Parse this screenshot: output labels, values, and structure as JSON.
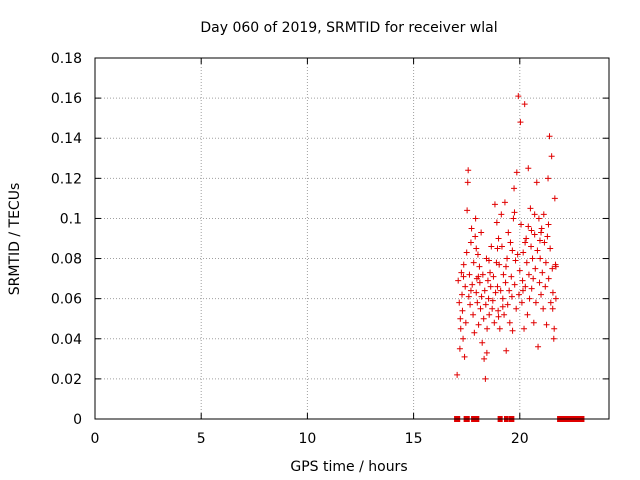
{
  "chart_data": {
    "type": "scatter",
    "title": "Day 060 of 2019, SRMTID for receiver wlal",
    "xlabel": "GPS time / hours",
    "ylabel": "SRMTID / TECUs",
    "xlim": [
      0,
      24.2
    ],
    "ylim": [
      0,
      0.18
    ],
    "grid": true,
    "marker": "+",
    "colors": {
      "series": "#e00000",
      "grid": "#a0a0a0",
      "axis": "#000000"
    },
    "x_ticks": [
      {
        "value": 0,
        "label": "0"
      },
      {
        "value": 5,
        "label": "5"
      },
      {
        "value": 10,
        "label": "10"
      },
      {
        "value": 15,
        "label": "15"
      },
      {
        "value": 20,
        "label": "20"
      }
    ],
    "y_ticks": [
      {
        "value": 0,
        "label": "0"
      },
      {
        "value": 0.02,
        "label": "0.02"
      },
      {
        "value": 0.04,
        "label": "0.04"
      },
      {
        "value": 0.06,
        "label": "0.06"
      },
      {
        "value": 0.08,
        "label": "0.08"
      },
      {
        "value": 0.1,
        "label": "0.1"
      },
      {
        "value": 0.12,
        "label": "0.12"
      },
      {
        "value": 0.14,
        "label": "0.14"
      },
      {
        "value": 0.16,
        "label": "0.16"
      },
      {
        "value": 0.18,
        "label": "0.18"
      }
    ],
    "series": [
      {
        "name": "SRMTID",
        "points": [
          [
            17.05,
            0.022
          ],
          [
            17.1,
            0.069
          ],
          [
            17.15,
            0.058
          ],
          [
            17.18,
            0.035
          ],
          [
            17.22,
            0.045
          ],
          [
            17.25,
            0.073
          ],
          [
            17.28,
            0.062
          ],
          [
            17.3,
            0.054
          ],
          [
            17.33,
            0.04
          ],
          [
            17.36,
            0.077
          ],
          [
            17.4,
            0.031
          ],
          [
            17.43,
            0.066
          ],
          [
            17.46,
            0.048
          ],
          [
            17.5,
            0.083
          ],
          [
            17.52,
            0.104
          ],
          [
            17.55,
            0.118
          ],
          [
            17.57,
            0.124
          ],
          [
            17.6,
            0.061
          ],
          [
            17.63,
            0.072
          ],
          [
            17.66,
            0.057
          ],
          [
            17.7,
            0.088
          ],
          [
            17.73,
            0.095
          ],
          [
            17.76,
            0.067
          ],
          [
            17.8,
            0.052
          ],
          [
            17.83,
            0.078
          ],
          [
            17.86,
            0.043
          ],
          [
            17.9,
            0.091
          ],
          [
            17.92,
            0.1
          ],
          [
            17.95,
            0.063
          ],
          [
            17.98,
            0.07
          ],
          [
            18.0,
            0.058
          ],
          [
            18.03,
            0.082
          ],
          [
            18.06,
            0.047
          ],
          [
            18.1,
            0.076
          ],
          [
            18.12,
            0.068
          ],
          [
            18.15,
            0.055
          ],
          [
            18.18,
            0.093
          ],
          [
            18.2,
            0.061
          ],
          [
            18.23,
            0.038
          ],
          [
            18.26,
            0.072
          ],
          [
            18.3,
            0.05
          ],
          [
            18.32,
            0.03
          ],
          [
            18.35,
            0.064
          ],
          [
            18.38,
            0.02
          ],
          [
            18.4,
            0.057
          ],
          [
            18.43,
            0.08
          ],
          [
            18.46,
            0.045
          ],
          [
            18.5,
            0.069
          ],
          [
            18.53,
            0.06
          ],
          [
            18.56,
            0.052
          ],
          [
            18.6,
            0.073
          ],
          [
            18.63,
            0.066
          ],
          [
            18.66,
            0.086
          ],
          [
            18.7,
            0.055
          ],
          [
            18.73,
            0.059
          ],
          [
            18.76,
            0.071
          ],
          [
            18.8,
            0.048
          ],
          [
            18.83,
            0.107
          ],
          [
            18.86,
            0.063
          ],
          [
            18.9,
            0.078
          ],
          [
            18.92,
            0.098
          ],
          [
            18.95,
            0.066
          ],
          [
            18.98,
            0.054
          ],
          [
            19.0,
            0.09
          ],
          [
            19.03,
            0.077
          ],
          [
            19.06,
            0.045
          ],
          [
            19.1,
            0.064
          ],
          [
            19.13,
            0.102
          ],
          [
            19.16,
            0.086
          ],
          [
            19.2,
            0.06
          ],
          [
            19.23,
            0.072
          ],
          [
            19.26,
            0.052
          ],
          [
            19.3,
            0.108
          ],
          [
            19.33,
            0.068
          ],
          [
            19.36,
            0.034
          ],
          [
            19.4,
            0.08
          ],
          [
            19.43,
            0.057
          ],
          [
            19.46,
            0.093
          ],
          [
            19.5,
            0.064
          ],
          [
            19.53,
            0.048
          ],
          [
            19.56,
            0.088
          ],
          [
            19.6,
            0.071
          ],
          [
            19.63,
            0.061
          ],
          [
            19.66,
            0.044
          ],
          [
            19.7,
            0.1
          ],
          [
            19.73,
            0.115
          ],
          [
            19.76,
            0.067
          ],
          [
            19.8,
            0.079
          ],
          [
            19.83,
            0.055
          ],
          [
            19.86,
            0.123
          ],
          [
            19.9,
            0.082
          ],
          [
            19.93,
            0.161
          ],
          [
            19.96,
            0.062
          ],
          [
            20.0,
            0.074
          ],
          [
            20.03,
            0.148
          ],
          [
            20.06,
            0.097
          ],
          [
            20.1,
            0.058
          ],
          [
            20.13,
            0.069
          ],
          [
            20.16,
            0.083
          ],
          [
            20.2,
            0.045
          ],
          [
            20.23,
            0.157
          ],
          [
            20.26,
            0.066
          ],
          [
            20.3,
            0.09
          ],
          [
            20.33,
            0.078
          ],
          [
            20.36,
            0.052
          ],
          [
            20.4,
            0.096
          ],
          [
            20.43,
            0.072
          ],
          [
            20.46,
            0.06
          ],
          [
            20.5,
            0.105
          ],
          [
            20.53,
            0.086
          ],
          [
            20.56,
            0.065
          ],
          [
            20.6,
            0.08
          ],
          [
            20.63,
            0.07
          ],
          [
            20.66,
            0.048
          ],
          [
            20.7,
            0.092
          ],
          [
            20.73,
            0.075
          ],
          [
            20.76,
            0.058
          ],
          [
            20.8,
            0.118
          ],
          [
            20.83,
            0.084
          ],
          [
            20.86,
            0.036
          ],
          [
            20.9,
            0.1
          ],
          [
            20.93,
            0.068
          ],
          [
            20.96,
            0.08
          ],
          [
            21.0,
            0.062
          ],
          [
            21.03,
            0.095
          ],
          [
            21.06,
            0.073
          ],
          [
            21.1,
            0.055
          ],
          [
            21.13,
            0.102
          ],
          [
            21.16,
            0.088
          ],
          [
            21.2,
            0.066
          ],
          [
            21.23,
            0.078
          ],
          [
            21.26,
            0.047
          ],
          [
            21.3,
            0.091
          ],
          [
            21.33,
            0.12
          ],
          [
            21.36,
            0.07
          ],
          [
            21.4,
            0.141
          ],
          [
            21.43,
            0.085
          ],
          [
            21.46,
            0.058
          ],
          [
            21.5,
            0.131
          ],
          [
            21.53,
            0.075
          ],
          [
            21.56,
            0.063
          ],
          [
            21.6,
            0.04
          ],
          [
            21.62,
            0.045
          ],
          [
            21.65,
            0.11
          ],
          [
            21.68,
            0.077
          ],
          [
            21.7,
            0.06
          ],
          [
            17.2,
            0.05
          ],
          [
            17.7,
            0.064
          ],
          [
            18.05,
            0.071
          ],
          [
            18.45,
            0.033
          ],
          [
            18.95,
            0.085
          ],
          [
            19.35,
            0.076
          ],
          [
            19.75,
            0.103
          ],
          [
            20.15,
            0.064
          ],
          [
            20.55,
            0.094
          ],
          [
            20.95,
            0.089
          ],
          [
            21.35,
            0.097
          ],
          [
            21.55,
            0.055
          ],
          [
            19.2,
            0.056
          ],
          [
            20.4,
            0.125
          ],
          [
            20.7,
            0.102
          ],
          [
            21.0,
            0.093
          ],
          [
            17.95,
            0.085
          ],
          [
            18.55,
            0.079
          ],
          [
            19.0,
            0.051
          ],
          [
            17.35,
            0.071
          ],
          [
            21.7,
            0.076
          ],
          [
            20.25,
            0.088
          ],
          [
            19.65,
            0.084
          ]
        ]
      }
    ],
    "baseline_markers": {
      "y": 0,
      "x": [
        17.0,
        17.1,
        17.45,
        17.55,
        17.8,
        17.9,
        18.0,
        19.05,
        19.1,
        19.35,
        19.55,
        19.65,
        21.85,
        21.95,
        22.05,
        22.15,
        22.25,
        22.35,
        22.45,
        22.55,
        22.65,
        22.75,
        22.85,
        22.95
      ]
    }
  }
}
